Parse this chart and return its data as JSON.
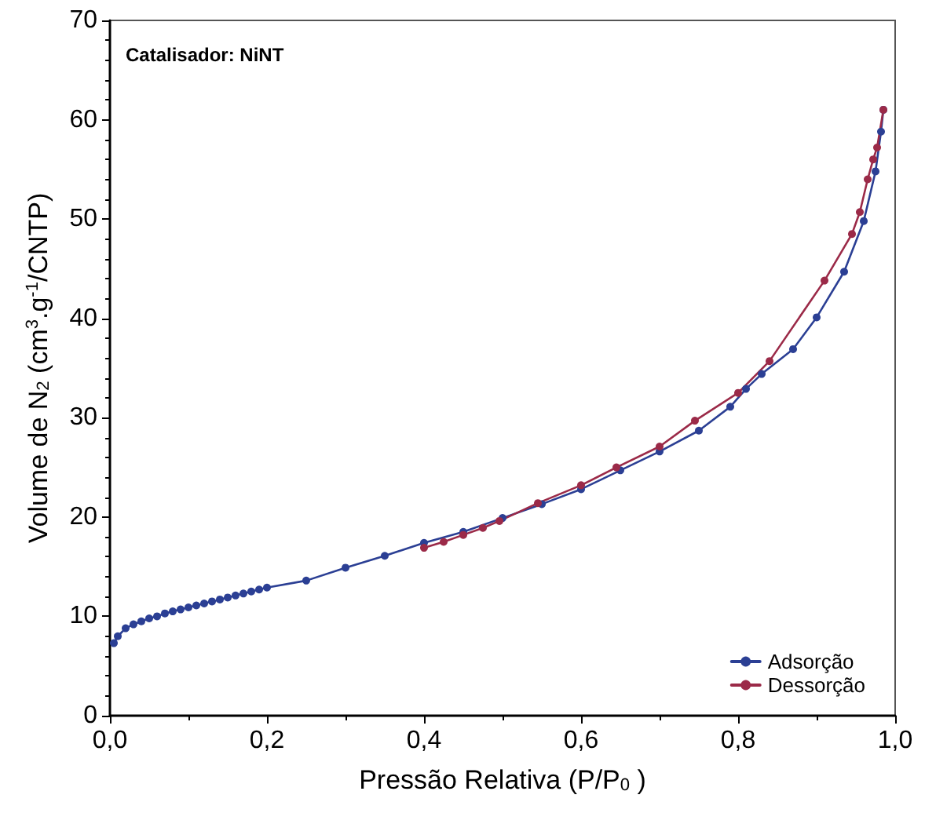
{
  "chart_data": {
    "type": "line",
    "xlabel": "Pressão Relativa (P/P$_{0}$ )",
    "ylabel": "Volume de N$_{2}$ (cm$^{3}$.g$^{-1}$/CNTP)",
    "annotations": [
      "Catalisador: NiNT"
    ],
    "xlim": [
      0,
      1
    ],
    "xticks": [
      {
        "value": 0,
        "label": "0,0"
      },
      {
        "value": 0.2,
        "label": "0,2"
      },
      {
        "value": 0.4,
        "label": "0,4"
      },
      {
        "value": 0.6,
        "label": "0,6"
      },
      {
        "value": 0.8,
        "label": "0,8"
      },
      {
        "value": 1,
        "label": "1,0"
      }
    ],
    "ylim": [
      0,
      70
    ],
    "yticks": [
      0,
      10,
      20,
      30,
      40,
      50,
      60,
      70
    ],
    "grid": false,
    "legend": "bottom right",
    "marker": "circle",
    "line_style": "solid",
    "series": [
      {
        "name": "Adsorção",
        "color": "#2b3f94",
        "x": [
          0.005,
          0.01,
          0.02,
          0.03,
          0.04,
          0.05,
          0.06,
          0.07,
          0.08,
          0.09,
          0.1,
          0.11,
          0.12,
          0.13,
          0.14,
          0.15,
          0.16,
          0.17,
          0.18,
          0.19,
          0.2,
          0.25,
          0.3,
          0.35,
          0.4,
          0.45,
          0.5,
          0.55,
          0.6,
          0.65,
          0.7,
          0.75,
          0.79,
          0.81,
          0.83,
          0.87,
          0.9,
          0.935,
          0.96,
          0.975,
          0.982,
          0.985
        ],
        "values": [
          7.3,
          8.0,
          8.8,
          9.2,
          9.5,
          9.8,
          10.0,
          10.3,
          10.5,
          10.7,
          10.9,
          11.1,
          11.3,
          11.5,
          11.7,
          11.9,
          12.1,
          12.3,
          12.5,
          12.7,
          12.9,
          13.6,
          14.9,
          16.1,
          17.4,
          18.5,
          19.9,
          21.3,
          22.8,
          24.7,
          26.6,
          28.7,
          31.1,
          32.9,
          34.4,
          36.9,
          40.1,
          44.7,
          49.8,
          54.8,
          58.8,
          61.0
        ]
      },
      {
        "name": "Dessorção",
        "color": "#9b2a48",
        "x": [
          0.985,
          0.977,
          0.972,
          0.965,
          0.955,
          0.945,
          0.91,
          0.84,
          0.8,
          0.745,
          0.7,
          0.645,
          0.6,
          0.545,
          0.496,
          0.475,
          0.45,
          0.425,
          0.4
        ],
        "values": [
          61.0,
          57.2,
          56.0,
          54.0,
          50.7,
          48.5,
          43.8,
          35.7,
          32.5,
          29.7,
          27.1,
          25.0,
          23.2,
          21.4,
          19.6,
          18.9,
          18.2,
          17.5,
          16.9
        ]
      }
    ]
  }
}
